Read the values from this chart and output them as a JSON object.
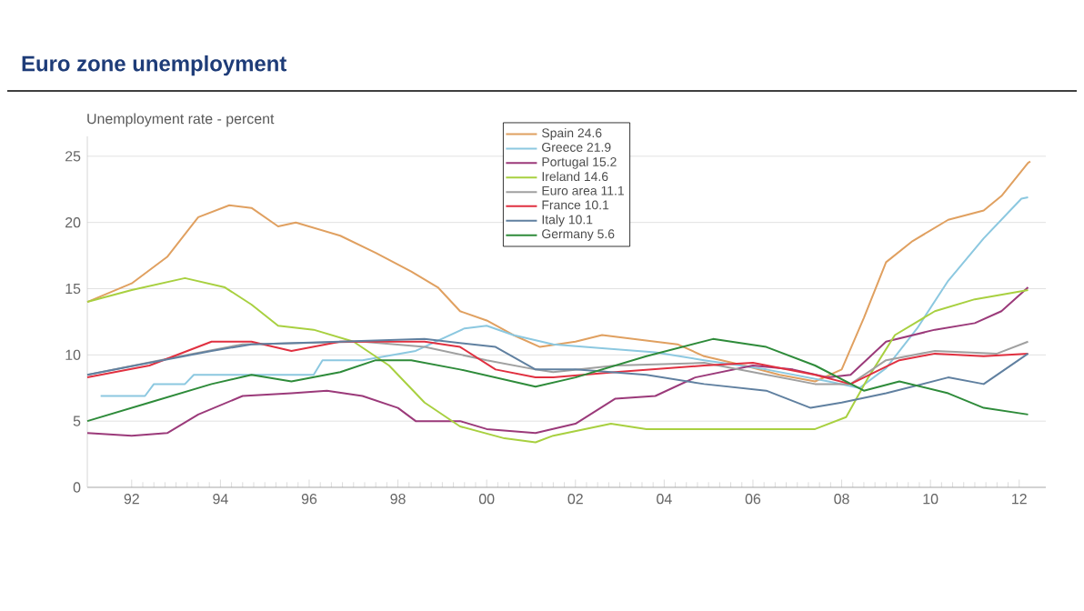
{
  "chart_data": {
    "type": "line",
    "title": "Euro zone unemployment",
    "ylabel": "Unemployment rate - percent",
    "xlim": [
      1991,
      2012.6
    ],
    "ylim": [
      0,
      26.5
    ],
    "xticks": [
      {
        "value": 1992,
        "label": "92"
      },
      {
        "value": 1994,
        "label": "94"
      },
      {
        "value": 1996,
        "label": "96"
      },
      {
        "value": 1998,
        "label": "98"
      },
      {
        "value": 2000,
        "label": "00"
      },
      {
        "value": 2002,
        "label": "02"
      },
      {
        "value": 2004,
        "label": "04"
      },
      {
        "value": 2006,
        "label": "06"
      },
      {
        "value": 2008,
        "label": "08"
      },
      {
        "value": 2010,
        "label": "10"
      },
      {
        "value": 2012,
        "label": "12"
      }
    ],
    "yticks": [
      0,
      5,
      10,
      15,
      20,
      25
    ],
    "grid": "y",
    "legend": "top",
    "marker": "none",
    "line_style": "solid",
    "series": [
      {
        "name": "Spain 24.6",
        "color": "#e0a060",
        "x": [
          1991.0,
          1992.0,
          1992.8,
          1993.5,
          1994.2,
          1994.7,
          1995.3,
          1995.7,
          1996.7,
          1997.5,
          1998.3,
          1998.9,
          1999.4,
          2000.0,
          2000.6,
          2001.2,
          2002.0,
          2002.6,
          2003.3,
          2004.3,
          2004.9,
          2005.8,
          2006.6,
          2007.4,
          2008.0,
          2008.5,
          2009.0,
          2009.6,
          2010.4,
          2011.2,
          2011.6,
          2012.2,
          2012.25
        ],
        "values": [
          14.0,
          15.4,
          17.4,
          20.4,
          21.3,
          21.1,
          19.7,
          20.0,
          19.0,
          17.7,
          16.3,
          15.1,
          13.3,
          12.6,
          11.5,
          10.6,
          11.0,
          11.5,
          11.2,
          10.8,
          9.9,
          9.2,
          8.5,
          8.0,
          8.9,
          12.8,
          17.0,
          18.6,
          20.2,
          20.9,
          22.0,
          24.5,
          24.6
        ]
      },
      {
        "name": "Greece 21.9",
        "color": "#8cc8e0",
        "x": [
          1991.3,
          1992.3,
          1992.5,
          1993.2,
          1993.4,
          1996.1,
          1996.3,
          1997.2,
          1998.4,
          1999.5,
          2000.0,
          2000.6,
          2001.5,
          2002.6,
          2003.8,
          2004.9,
          2006.3,
          2007.7,
          2008.4,
          2009.0,
          2009.7,
          2010.4,
          2011.2,
          2012.05,
          2012.2
        ],
        "values": [
          6.9,
          6.9,
          7.8,
          7.8,
          8.5,
          8.5,
          9.6,
          9.6,
          10.3,
          12.0,
          12.2,
          11.5,
          10.8,
          10.5,
          10.2,
          9.6,
          8.9,
          8.0,
          7.5,
          9.0,
          12.0,
          15.6,
          18.8,
          21.8,
          21.9
        ]
      },
      {
        "name": "Portugal 15.2",
        "color": "#9b3a7a",
        "x": [
          1991.0,
          1992.0,
          1992.8,
          1993.5,
          1994.5,
          1995.6,
          1996.4,
          1997.2,
          1998.0,
          1998.4,
          1999.4,
          2000.0,
          2001.1,
          2002.0,
          2002.9,
          2003.8,
          2004.7,
          2006.0,
          2006.9,
          2007.7,
          2008.2,
          2009.0,
          2010.1,
          2011.0,
          2011.6,
          2012.2
        ],
        "values": [
          4.1,
          3.9,
          4.1,
          5.5,
          6.9,
          7.1,
          7.3,
          6.9,
          6.0,
          5.0,
          5.0,
          4.4,
          4.1,
          4.8,
          6.7,
          6.9,
          8.3,
          9.2,
          8.9,
          8.3,
          8.5,
          11.0,
          11.9,
          12.4,
          13.3,
          15.1
        ]
      },
      {
        "name": "Ireland 14.6",
        "color": "#a8d040",
        "x": [
          1991.0,
          1992.0,
          1993.2,
          1994.1,
          1994.7,
          1995.3,
          1996.1,
          1997.0,
          1997.8,
          1998.6,
          1999.4,
          2000.4,
          2001.1,
          2001.5,
          2002.8,
          2003.6,
          2004.9,
          2006.3,
          2007.4,
          2008.1,
          2008.6,
          2009.2,
          2010.1,
          2011.0,
          2012.2
        ],
        "values": [
          14.0,
          14.9,
          15.8,
          15.1,
          13.8,
          12.2,
          11.9,
          11.0,
          9.2,
          6.4,
          4.6,
          3.7,
          3.4,
          3.9,
          4.8,
          4.4,
          4.4,
          4.4,
          4.4,
          5.3,
          8.3,
          11.5,
          13.3,
          14.2,
          14.9
        ]
      },
      {
        "name": "Euro area 11.1",
        "color": "#a0a0a0",
        "x": [
          1991.0,
          1993.1,
          1994.5,
          1997.2,
          1998.6,
          2000.0,
          2001.1,
          2001.5,
          2002.9,
          2004.9,
          2006.0,
          2007.4,
          2008.2,
          2009.0,
          2010.1,
          2011.5,
          2012.2
        ],
        "values": [
          8.5,
          9.9,
          10.8,
          11.0,
          10.6,
          9.6,
          8.9,
          8.7,
          9.2,
          9.4,
          8.7,
          7.8,
          7.8,
          9.6,
          10.3,
          10.1,
          11.0
        ]
      },
      {
        "name": "France 10.1",
        "color": "#e03040",
        "x": [
          1991.0,
          1992.4,
          1993.8,
          1994.7,
          1995.6,
          1996.7,
          1998.6,
          1999.4,
          2000.2,
          2001.1,
          2001.5,
          2002.9,
          2004.9,
          2006.0,
          2007.4,
          2008.2,
          2009.3,
          2010.1,
          2011.2,
          2012.2
        ],
        "values": [
          8.3,
          9.2,
          11.0,
          11.0,
          10.3,
          11.0,
          11.0,
          10.6,
          8.9,
          8.3,
          8.3,
          8.7,
          9.2,
          9.4,
          8.5,
          7.8,
          9.6,
          10.1,
          9.9,
          10.1
        ]
      },
      {
        "name": "Italy 10.1",
        "color": "#6080a0",
        "x": [
          1991.0,
          1992.4,
          1993.8,
          1994.7,
          1996.7,
          1998.6,
          2000.2,
          2001.1,
          2002.0,
          2003.6,
          2004.9,
          2006.3,
          2007.3,
          2008.0,
          2009.0,
          2010.4,
          2011.2,
          2012.2
        ],
        "values": [
          8.5,
          9.4,
          10.3,
          10.8,
          11.0,
          11.2,
          10.6,
          8.9,
          8.9,
          8.5,
          7.8,
          7.3,
          6.0,
          6.4,
          7.1,
          8.3,
          7.8,
          10.1
        ]
      },
      {
        "name": "Germany 5.6",
        "color": "#2e8b3a",
        "x": [
          1991.0,
          1992.4,
          1993.8,
          1994.7,
          1995.6,
          1996.7,
          1997.5,
          1998.3,
          1999.4,
          2001.1,
          2002.0,
          2003.6,
          2005.1,
          2006.3,
          2007.4,
          2008.5,
          2009.3,
          2010.4,
          2011.2,
          2012.2
        ],
        "values": [
          5.0,
          6.4,
          7.8,
          8.5,
          8.0,
          8.7,
          9.6,
          9.6,
          8.9,
          7.6,
          8.3,
          9.9,
          11.2,
          10.6,
          9.2,
          7.3,
          8.0,
          7.1,
          6.0,
          5.5
        ]
      }
    ]
  }
}
